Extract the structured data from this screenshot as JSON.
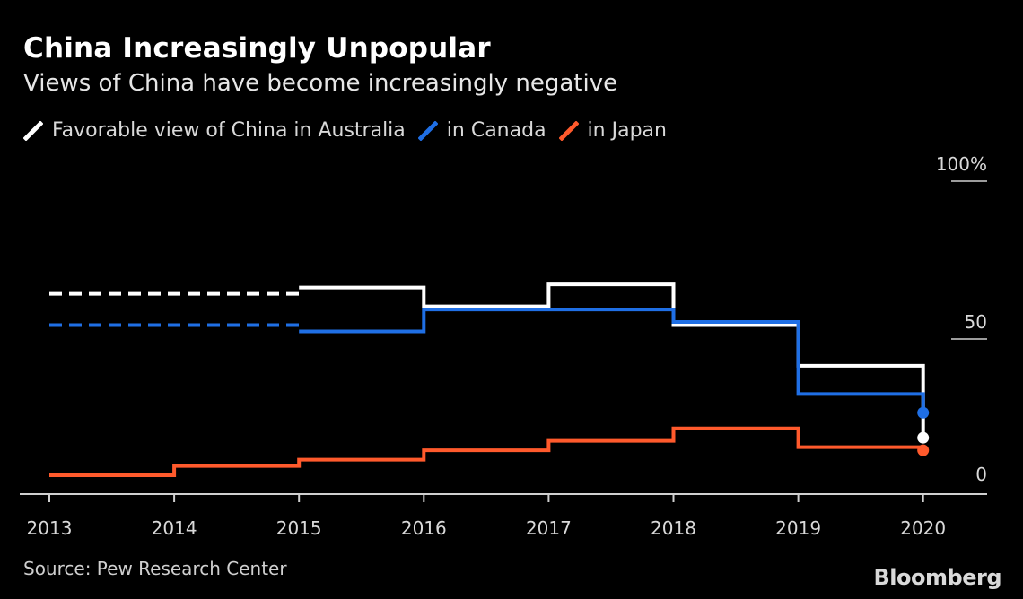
{
  "title": "China Increasingly Unpopular",
  "subtitle": "Views of China have become increasingly negative",
  "source": "Source: Pew Research Center",
  "brand": "Bloomberg",
  "colors": {
    "background": "#000000",
    "australia": "#ffffff",
    "canada": "#1f6fe5",
    "japan": "#ff5a2c",
    "axis": "#cfcfcf"
  },
  "chart_data": {
    "type": "line",
    "step": true,
    "x": [
      "2013",
      "2014",
      "2015",
      "2016",
      "2017",
      "2018",
      "2019",
      "2020"
    ],
    "ylim": [
      0,
      100
    ],
    "yticks": [
      {
        "value": 100,
        "label": "100%"
      },
      {
        "value": 50,
        "label": "50"
      },
      {
        "value": 0,
        "label": "0"
      }
    ],
    "grid": false,
    "legend_position": "top-left",
    "series": [
      {
        "name": "Favorable view of China in Australia",
        "color": "#ffffff",
        "values": [
          64,
          null,
          66,
          60,
          67,
          54,
          41,
          18
        ],
        "dashed_until_index": 2,
        "endpoint_marker": true
      },
      {
        "name": "in Canada",
        "color": "#1f6fe5",
        "values": [
          54,
          null,
          52,
          59,
          59,
          55,
          32,
          26
        ],
        "dashed_until_index": 2,
        "endpoint_marker": true
      },
      {
        "name": "in Japan",
        "color": "#ff5a2c",
        "values": [
          6,
          9,
          11,
          14,
          17,
          21,
          15,
          14
        ],
        "endpoint_marker": true
      }
    ]
  }
}
